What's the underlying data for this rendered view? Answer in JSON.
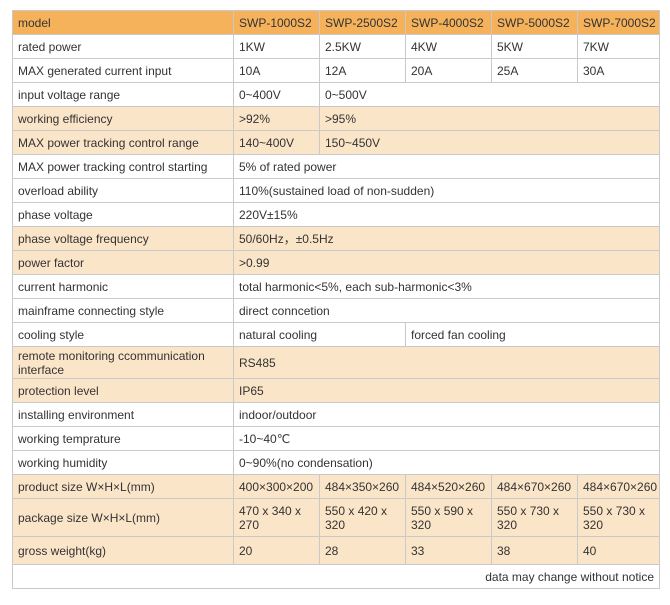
{
  "spec_table": {
    "header": {
      "label": "model",
      "models": [
        "SWP-1000S2",
        "SWP-2500S2",
        "SWP-4000S2",
        "SWP-5000S2",
        "SWP-7000S2"
      ]
    },
    "rated_power": {
      "label": "rated power",
      "values": [
        "1KW",
        "2.5KW",
        "4KW",
        "5KW",
        "7KW"
      ]
    },
    "max_current": {
      "label": "MAX generated current input",
      "values": [
        "10A",
        "12A",
        "20A",
        "25A",
        "30A"
      ]
    },
    "input_voltage": {
      "label": "input voltage range",
      "values": [
        "0~400V",
        "0~500V"
      ]
    },
    "efficiency": {
      "label": "working efficiency",
      "values": [
        ">92%",
        ">95%"
      ]
    },
    "mppt_range": {
      "label": "MAX power tracking control range",
      "values": [
        "140~400V",
        "150~450V"
      ]
    },
    "mppt_start": {
      "label": "MAX power tracking control starting",
      "value": "5% of rated power"
    },
    "overload": {
      "label": "overload ability",
      "value": "110%(sustained load of non-sudden)"
    },
    "phase_voltage": {
      "label": "phase voltage",
      "value": "220V±15%"
    },
    "phase_frequency": {
      "label": "phase voltage frequency",
      "value": "50/60Hz，±0.5Hz"
    },
    "power_factor": {
      "label": "power factor",
      "value": ">0.99"
    },
    "current_harmonic": {
      "label": "current harmonic",
      "value": "total harmonic<5%, each sub-harmonic<3%"
    },
    "mainframe": {
      "label": "mainframe connecting style",
      "value": "direct conncetion"
    },
    "cooling": {
      "label": "cooling style",
      "values": [
        "natural cooling",
        "forced fan cooling"
      ]
    },
    "remote": {
      "label": "remote monitoring ccommunication interface",
      "value": "RS485"
    },
    "protection": {
      "label": "protection level",
      "value": "IP65"
    },
    "environment": {
      "label": "installing environment",
      "value": "indoor/outdoor"
    },
    "temperature": {
      "label": "working temprature",
      "value": "-10~40℃"
    },
    "humidity": {
      "label": "working humidity",
      "value": "0~90%(no condensation)"
    },
    "product_size": {
      "label": "product size W×H×L(mm)",
      "values": [
        "400×300×200",
        "484×350×260",
        "484×520×260",
        "484×670×260",
        "484×670×260"
      ]
    },
    "package_size": {
      "label": "package size W×H×L(mm)",
      "values": [
        "470 x 340 x 270",
        "550 x 420 x 320",
        "550 x 590 x 320",
        "550 x 730 x 320",
        "550 x 730 x 320"
      ]
    },
    "gross_weight": {
      "label": "gross weight(kg)",
      "values": [
        "20",
        "28",
        "33",
        "38",
        "40"
      ]
    },
    "note": "data may change without notice"
  },
  "colors": {
    "header_bg": "#f5b25b",
    "highlight_row_bg": "#fbe5c9",
    "border": "#c9c9c9",
    "text": "#333333"
  }
}
